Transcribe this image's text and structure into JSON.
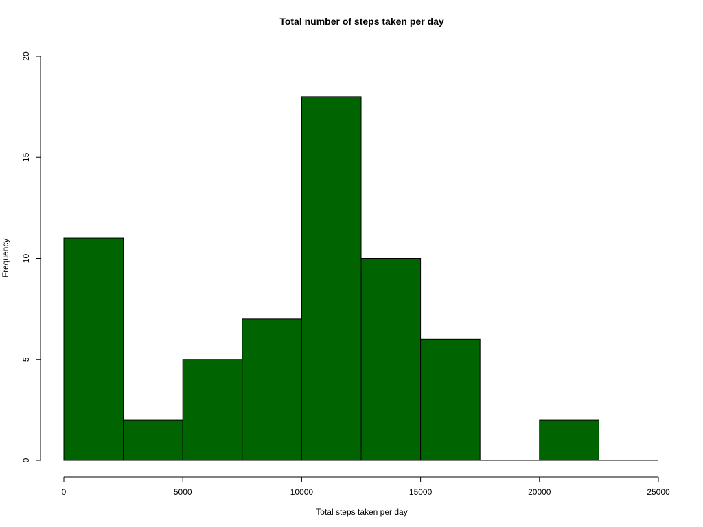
{
  "chart_data": {
    "type": "bar",
    "title": "Total number of steps taken per day",
    "xlabel": "Total steps taken per day",
    "ylabel": "Frequency",
    "xlim": [
      0,
      25000
    ],
    "ylim": [
      0,
      20
    ],
    "bins": [
      {
        "start": 0,
        "end": 2500,
        "value": 11
      },
      {
        "start": 2500,
        "end": 5000,
        "value": 2
      },
      {
        "start": 5000,
        "end": 7500,
        "value": 5
      },
      {
        "start": 7500,
        "end": 10000,
        "value": 7
      },
      {
        "start": 10000,
        "end": 12500,
        "value": 18
      },
      {
        "start": 12500,
        "end": 15000,
        "value": 10
      },
      {
        "start": 15000,
        "end": 17500,
        "value": 6
      },
      {
        "start": 17500,
        "end": 20000,
        "value": 0
      },
      {
        "start": 20000,
        "end": 22500,
        "value": 2
      },
      {
        "start": 22500,
        "end": 25000,
        "value": 0
      }
    ],
    "x_ticks": [
      0,
      5000,
      10000,
      15000,
      20000,
      25000
    ],
    "x_tick_labels": [
      "0",
      "5000",
      "10000",
      "15000",
      "20000",
      "25000"
    ],
    "y_ticks": [
      0,
      5,
      10,
      15,
      20
    ],
    "y_tick_labels": [
      "0",
      "5",
      "10",
      "15",
      "20"
    ],
    "bar_color": "#006400",
    "bar_border_color": "#000000",
    "grid": false
  }
}
